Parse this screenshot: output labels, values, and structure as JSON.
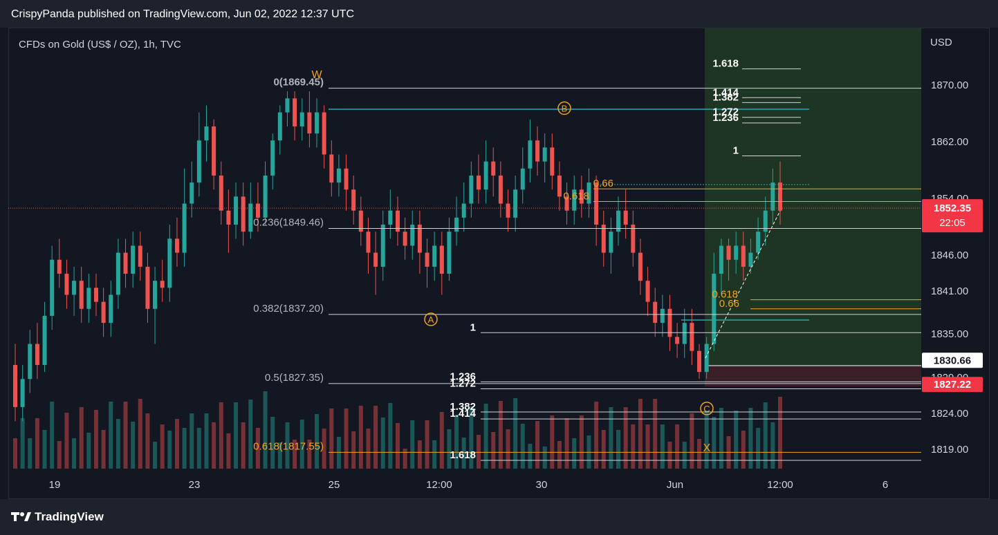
{
  "header": {
    "publisher_text": "CrispyPanda published on TradingView.com, Jun 02, 2022 12:37 UTC"
  },
  "symbol_label": "CFDs on Gold (US$ / OZ), 1h, TVC",
  "currency_label": "USD",
  "branding": {
    "logo_text": "TradingView"
  },
  "colors": {
    "background": "#131722",
    "up": "#26a69a",
    "down": "#ef5350",
    "fib_white": "#d1d4dc",
    "fib_orange": "#f7a21b",
    "teal_line": "#2aa7b4",
    "green_zone": "#1f3524",
    "red_zone": "#3b1f28",
    "price_badge": "#f23645"
  },
  "chart_data": {
    "type": "candlestick",
    "title": "CFDs on Gold (US$ / OZ), 1h, TVC",
    "ylabel": "USD",
    "ylim": [
      1815,
      1874
    ],
    "y_ticks": [
      1870.0,
      1862.0,
      1854.0,
      1846.0,
      1841.0,
      1835.0,
      1829.0,
      1824.0,
      1819.0
    ],
    "x_ticks": [
      "19",
      "23",
      "25",
      "12:00",
      "30",
      "Jun",
      "12:00",
      "6"
    ],
    "price_scale_labels": [
      {
        "value": 1852.35,
        "text": "1852.35",
        "sub": "22:05",
        "style": "red"
      },
      {
        "value": 1830.66,
        "text": "1830.66",
        "style": "white"
      },
      {
        "value": 1827.22,
        "text": "1827.22",
        "style": "red"
      }
    ],
    "retracement": {
      "levels": [
        {
          "ratio": "0",
          "price": 1869.45,
          "label": "0(1869.45)"
        },
        {
          "ratio": "0.236",
          "price": 1849.46,
          "label": "0.236(1849.46)"
        },
        {
          "ratio": "0.382",
          "price": 1837.2,
          "label": "0.382(1837.20)"
        },
        {
          "ratio": "0.5",
          "price": 1827.35,
          "label": "0.5(1827.35)"
        },
        {
          "ratio": "0.618",
          "price": 1817.55,
          "label": "0.618(1817.55)"
        }
      ]
    },
    "upper_extension_labels": [
      {
        "label": "1.618",
        "price": 1872.2
      },
      {
        "label": "1.414",
        "price": 1868.1
      },
      {
        "label": "1.382",
        "price": 1867.4
      },
      {
        "label": "1.272",
        "price": 1865.3
      },
      {
        "label": "1.236",
        "price": 1864.5
      },
      {
        "label": "1",
        "price": 1859.8
      }
    ],
    "lower_extension_labels": [
      {
        "label": "1",
        "price": 1834.6
      },
      {
        "label": "1.236",
        "price": 1827.6
      },
      {
        "label": "1.272",
        "price": 1826.6
      },
      {
        "label": "1.382",
        "price": 1823.3
      },
      {
        "label": "1.414",
        "price": 1822.3
      },
      {
        "label": "1.618",
        "price": 1816.4
      }
    ],
    "orange_fib_labels": [
      {
        "label": "0.66",
        "price": 1855.1
      },
      {
        "label": "0.618",
        "price": 1853.3
      },
      {
        "label": "0.618",
        "price": 1839.3
      },
      {
        "label": "0.66",
        "price": 1838.0
      }
    ],
    "wave_labels": [
      {
        "label": "W",
        "style": "text",
        "price": 1871.5
      },
      {
        "label": "B",
        "style": "circle",
        "price": 1866.6
      },
      {
        "label": "A",
        "style": "circle",
        "price": 1836.5
      },
      {
        "label": "C",
        "style": "circle",
        "price": 1823.8
      },
      {
        "label": "X",
        "style": "text",
        "price": 1818.3
      }
    ],
    "candles": [
      [
        1830,
        1824,
        1833,
        1822
      ],
      [
        1824,
        1828,
        1830,
        1822
      ],
      [
        1828,
        1833,
        1835,
        1826
      ],
      [
        1833,
        1830,
        1836,
        1828
      ],
      [
        1830,
        1837,
        1839,
        1829
      ],
      [
        1837,
        1845,
        1847,
        1835
      ],
      [
        1845,
        1843,
        1848,
        1841
      ],
      [
        1843,
        1840,
        1845,
        1838
      ],
      [
        1840,
        1842,
        1844,
        1837
      ],
      [
        1842,
        1838,
        1844,
        1836
      ],
      [
        1838,
        1841,
        1843,
        1836
      ],
      [
        1841,
        1839,
        1843,
        1837
      ],
      [
        1839,
        1836,
        1841,
        1834
      ],
      [
        1836,
        1840,
        1842,
        1834
      ],
      [
        1840,
        1846,
        1848,
        1838
      ],
      [
        1846,
        1843,
        1848,
        1841
      ],
      [
        1843,
        1847,
        1849,
        1841
      ],
      [
        1847,
        1844,
        1849,
        1842
      ],
      [
        1844,
        1838,
        1846,
        1836
      ],
      [
        1838,
        1842,
        1844,
        1833
      ],
      [
        1842,
        1841,
        1845,
        1839
      ],
      [
        1841,
        1848,
        1850,
        1839
      ],
      [
        1848,
        1846,
        1851,
        1844
      ],
      [
        1846,
        1853,
        1858,
        1844
      ],
      [
        1853,
        1856,
        1859,
        1851
      ],
      [
        1856,
        1862,
        1866,
        1854
      ],
      [
        1862,
        1864,
        1867,
        1859
      ],
      [
        1864,
        1857,
        1865,
        1855
      ],
      [
        1857,
        1852,
        1859,
        1850
      ],
      [
        1852,
        1850,
        1855,
        1846
      ],
      [
        1850,
        1854,
        1856,
        1848
      ],
      [
        1854,
        1849,
        1856,
        1847
      ],
      [
        1849,
        1853,
        1856,
        1848
      ],
      [
        1853,
        1851,
        1856,
        1849
      ],
      [
        1851,
        1857,
        1859,
        1850
      ],
      [
        1857,
        1862,
        1863,
        1855
      ],
      [
        1862,
        1866,
        1867,
        1860
      ],
      [
        1866,
        1868,
        1869,
        1864
      ],
      [
        1868,
        1864,
        1869,
        1862
      ],
      [
        1864,
        1866,
        1868,
        1862
      ],
      [
        1866,
        1863,
        1869,
        1861
      ],
      [
        1863,
        1866,
        1868,
        1861
      ],
      [
        1866,
        1860,
        1867,
        1858
      ],
      [
        1860,
        1856,
        1862,
        1854
      ],
      [
        1856,
        1858,
        1860,
        1854
      ],
      [
        1858,
        1855,
        1860,
        1852
      ],
      [
        1855,
        1852,
        1857,
        1850
      ],
      [
        1852,
        1849,
        1854,
        1847
      ],
      [
        1849,
        1846,
        1851,
        1843
      ],
      [
        1846,
        1844,
        1849,
        1840
      ],
      [
        1844,
        1850,
        1852,
        1842
      ],
      [
        1850,
        1852,
        1855,
        1848
      ],
      [
        1852,
        1849,
        1854,
        1847
      ],
      [
        1849,
        1847,
        1851,
        1845
      ],
      [
        1847,
        1850,
        1852,
        1845
      ],
      [
        1850,
        1846,
        1852,
        1843
      ],
      [
        1846,
        1844,
        1848,
        1841
      ],
      [
        1844,
        1847,
        1849,
        1842
      ],
      [
        1847,
        1843,
        1849,
        1840
      ],
      [
        1843,
        1849,
        1851,
        1842
      ],
      [
        1849,
        1851,
        1854,
        1847
      ],
      [
        1851,
        1853,
        1856,
        1849
      ],
      [
        1853,
        1857,
        1859,
        1851
      ],
      [
        1857,
        1855,
        1860,
        1853
      ],
      [
        1855,
        1859,
        1862,
        1853
      ],
      [
        1859,
        1857,
        1861,
        1854
      ],
      [
        1857,
        1853,
        1859,
        1851
      ],
      [
        1853,
        1851,
        1855,
        1849
      ],
      [
        1851,
        1855,
        1857,
        1849
      ],
      [
        1855,
        1858,
        1861,
        1853
      ],
      [
        1858,
        1862,
        1865,
        1856
      ],
      [
        1862,
        1859,
        1864,
        1857
      ],
      [
        1859,
        1861,
        1863,
        1856
      ],
      [
        1861,
        1857,
        1863,
        1855
      ],
      [
        1857,
        1854,
        1859,
        1852
      ],
      [
        1854,
        1852,
        1856,
        1850
      ],
      [
        1852,
        1855,
        1857,
        1850
      ],
      [
        1855,
        1853,
        1857,
        1851
      ],
      [
        1853,
        1856,
        1858,
        1851
      ],
      [
        1856,
        1850,
        1857,
        1847
      ],
      [
        1850,
        1846,
        1852,
        1844
      ],
      [
        1846,
        1849,
        1851,
        1843
      ],
      [
        1849,
        1852,
        1854,
        1847
      ],
      [
        1852,
        1850,
        1855,
        1848
      ],
      [
        1850,
        1846,
        1852,
        1844
      ],
      [
        1846,
        1842,
        1848,
        1840
      ],
      [
        1842,
        1839,
        1844,
        1837
      ],
      [
        1839,
        1836,
        1841,
        1834
      ],
      [
        1836,
        1838,
        1840,
        1834
      ],
      [
        1838,
        1834,
        1840,
        1832
      ],
      [
        1834,
        1833,
        1836,
        1831
      ],
      [
        1833,
        1836,
        1838,
        1831
      ],
      [
        1836,
        1832,
        1838,
        1830
      ],
      [
        1832,
        1829,
        1833,
        1828
      ],
      [
        1829,
        1833,
        1834,
        1828
      ],
      [
        1833,
        1843,
        1846,
        1832
      ],
      [
        1843,
        1847,
        1848,
        1840
      ],
      [
        1847,
        1845,
        1848,
        1842
      ],
      [
        1845,
        1847,
        1849,
        1843
      ],
      [
        1847,
        1844,
        1849,
        1842
      ],
      [
        1844,
        1846,
        1848,
        1843
      ],
      [
        1846,
        1849,
        1851,
        1845
      ],
      [
        1849,
        1852,
        1854,
        1847
      ],
      [
        1852,
        1856,
        1858,
        1850
      ],
      [
        1856,
        1852,
        1859,
        1850
      ]
    ],
    "volume_note": "volume histogram drawn beneath price candles"
  }
}
